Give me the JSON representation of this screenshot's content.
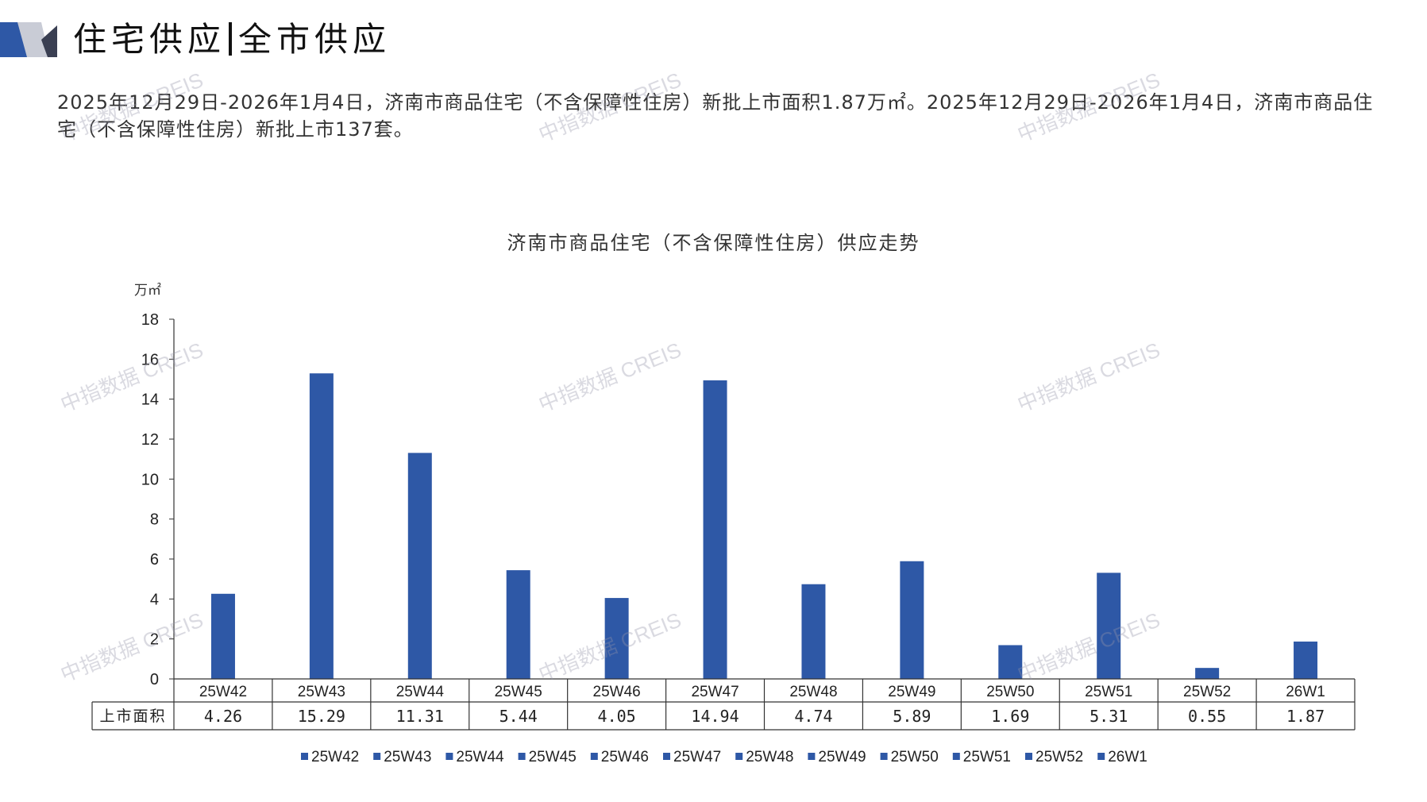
{
  "header": {
    "title_left": "住宅供应",
    "title_right": "全市供应"
  },
  "summary": "2025年12月29日-2026年1月4日，济南市商品住宅（不含保障性住房）新批上市面积1.87万㎡。2025年12月29日-2026年1月4日，济南市商品住宅（不含保障性住房）新批上市137套。",
  "watermark": "中指数据 CREIS",
  "colors": {
    "bar": "#2E58A6",
    "axis": "#333333",
    "grid": "#888888"
  },
  "chart_data": {
    "type": "bar",
    "title": "济南市商品住宅（不含保障性住房）供应走势",
    "ylabel": "万㎡",
    "ylim": [
      0,
      18
    ],
    "yticks": [
      "0",
      "2",
      "4",
      "6",
      "8",
      "10",
      "12",
      "14",
      "16",
      "18"
    ],
    "categories": [
      "25W42",
      "25W43",
      "25W44",
      "25W45",
      "25W46",
      "25W47",
      "25W48",
      "25W49",
      "25W50",
      "25W51",
      "25W52",
      "26W1"
    ],
    "series": [
      {
        "name": "上市面积",
        "values": [
          4.26,
          15.29,
          11.31,
          5.44,
          4.05,
          14.94,
          4.74,
          5.89,
          1.69,
          5.31,
          0.55,
          1.87
        ]
      }
    ],
    "table_labels": [
      "4.26",
      "15.29",
      "11.31",
      "5.44",
      "4.05",
      "14.94",
      "4.74",
      "5.89",
      "1.69",
      "5.31",
      "0.55",
      "1.87"
    ],
    "legend": [
      "25W42",
      "25W43",
      "25W44",
      "25W45",
      "25W46",
      "25W47",
      "25W48",
      "25W49",
      "25W50",
      "25W51",
      "25W52",
      "26W1"
    ],
    "legend_position": "bottom",
    "grid": false
  }
}
